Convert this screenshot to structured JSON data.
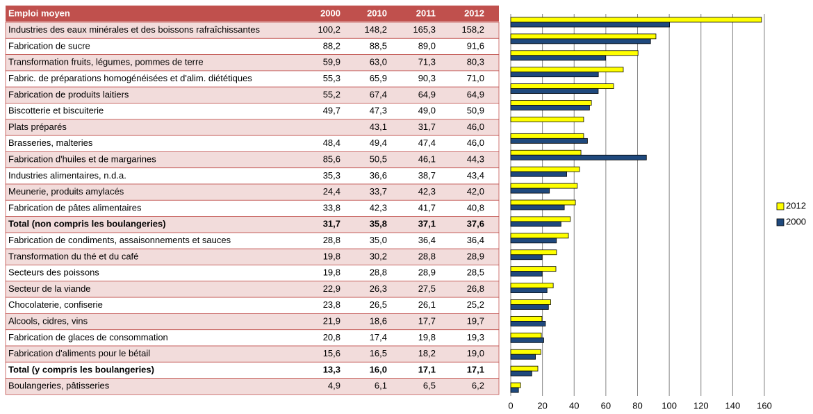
{
  "chart_data": {
    "type": "bar",
    "orientation": "horizontal",
    "row_header": "Emploi moyen",
    "categories": [
      "Industries des eaux minérales et des boissons rafraîchissantes",
      "Fabrication de sucre",
      "Transformation fruits, légumes, pommes de terre",
      "Fabric. de préparations homogénéisées et d'alim. diététiques",
      "Fabrication de produits laitiers",
      "Biscotterie et biscuiterie",
      "Plats préparés",
      "Brasseries, malteries",
      "Fabrication d'huiles et de margarines",
      "Industries alimentaires, n.d.a.",
      "Meunerie, produits amylacés",
      "Fabrication de pâtes alimentaires",
      "Total (non compris les boulangeries)",
      "Fabrication de condiments, assaisonnements et sauces",
      "Transformation du thé et du café",
      "Secteurs des poissons",
      "Secteur de la viande",
      "Chocolaterie, confiserie",
      "Alcools, cidres, vins",
      "Fabrication de glaces de consommation",
      "Fabrication d'aliments pour le bétail",
      "Total (y compris les boulangeries)",
      "Boulangeries, pâtisseries"
    ],
    "bold_rows": [
      12,
      21
    ],
    "series": [
      {
        "name": "2000",
        "color": "#1f497d",
        "values": [
          100.2,
          88.2,
          59.9,
          55.3,
          55.2,
          49.7,
          null,
          48.4,
          85.6,
          35.3,
          24.4,
          33.8,
          31.7,
          28.8,
          19.8,
          19.8,
          22.9,
          23.8,
          21.9,
          20.8,
          15.6,
          13.3,
          4.9
        ],
        "value_labels": [
          "100,2",
          "88,2",
          "59,9",
          "55,3",
          "55,2",
          "49,7",
          null,
          "48,4",
          "85,6",
          "35,3",
          "24,4",
          "33,8",
          "31,7",
          "28,8",
          "19,8",
          "19,8",
          "22,9",
          "23,8",
          "21,9",
          "20,8",
          "15,6",
          "13,3",
          "4,9"
        ]
      },
      {
        "name": "2010",
        "values": [
          148.2,
          88.5,
          63.0,
          65.9,
          67.4,
          47.3,
          43.1,
          49.4,
          50.5,
          36.6,
          33.7,
          42.3,
          35.8,
          35.0,
          30.2,
          28.8,
          26.3,
          26.5,
          18.6,
          17.4,
          16.5,
          16.0,
          6.1
        ],
        "value_labels": [
          "148,2",
          "88,5",
          "63,0",
          "65,9",
          "67,4",
          "47,3",
          "43,1",
          "49,4",
          "50,5",
          "36,6",
          "33,7",
          "42,3",
          "35,8",
          "35,0",
          "30,2",
          "28,8",
          "26,3",
          "26,5",
          "18,6",
          "17,4",
          "16,5",
          "16,0",
          "6,1"
        ]
      },
      {
        "name": "2011",
        "values": [
          165.3,
          89.0,
          71.3,
          90.3,
          64.9,
          49.0,
          31.7,
          47.4,
          46.1,
          38.7,
          42.3,
          41.7,
          37.1,
          36.4,
          28.8,
          28.9,
          27.5,
          26.1,
          17.7,
          19.8,
          18.2,
          17.1,
          6.5
        ],
        "value_labels": [
          "165,3",
          "89,0",
          "71,3",
          "90,3",
          "64,9",
          "49,0",
          "31,7",
          "47,4",
          "46,1",
          "38,7",
          "42,3",
          "41,7",
          "37,1",
          "36,4",
          "28,8",
          "28,9",
          "27,5",
          "26,1",
          "17,7",
          "19,8",
          "18,2",
          "17,1",
          "6,5"
        ]
      },
      {
        "name": "2012",
        "color": "#ffff00",
        "values": [
          158.2,
          91.6,
          80.3,
          71.0,
          64.9,
          50.9,
          46.0,
          46.0,
          44.3,
          43.4,
          42.0,
          40.8,
          37.6,
          36.4,
          28.9,
          28.5,
          26.8,
          25.2,
          19.7,
          19.3,
          19.0,
          17.1,
          6.2
        ],
        "value_labels": [
          "158,2",
          "91,6",
          "80,3",
          "71,0",
          "64,9",
          "50,9",
          "46,0",
          "46,0",
          "44,3",
          "43,4",
          "42,0",
          "40,8",
          "37,6",
          "36,4",
          "28,9",
          "28,5",
          "26,8",
          "25,2",
          "19,7",
          "19,3",
          "19,0",
          "17,1",
          "6,2"
        ]
      }
    ],
    "xlim": [
      0,
      160
    ],
    "xticks": [
      0,
      20,
      40,
      60,
      80,
      100,
      120,
      140,
      160
    ],
    "grid": true
  }
}
